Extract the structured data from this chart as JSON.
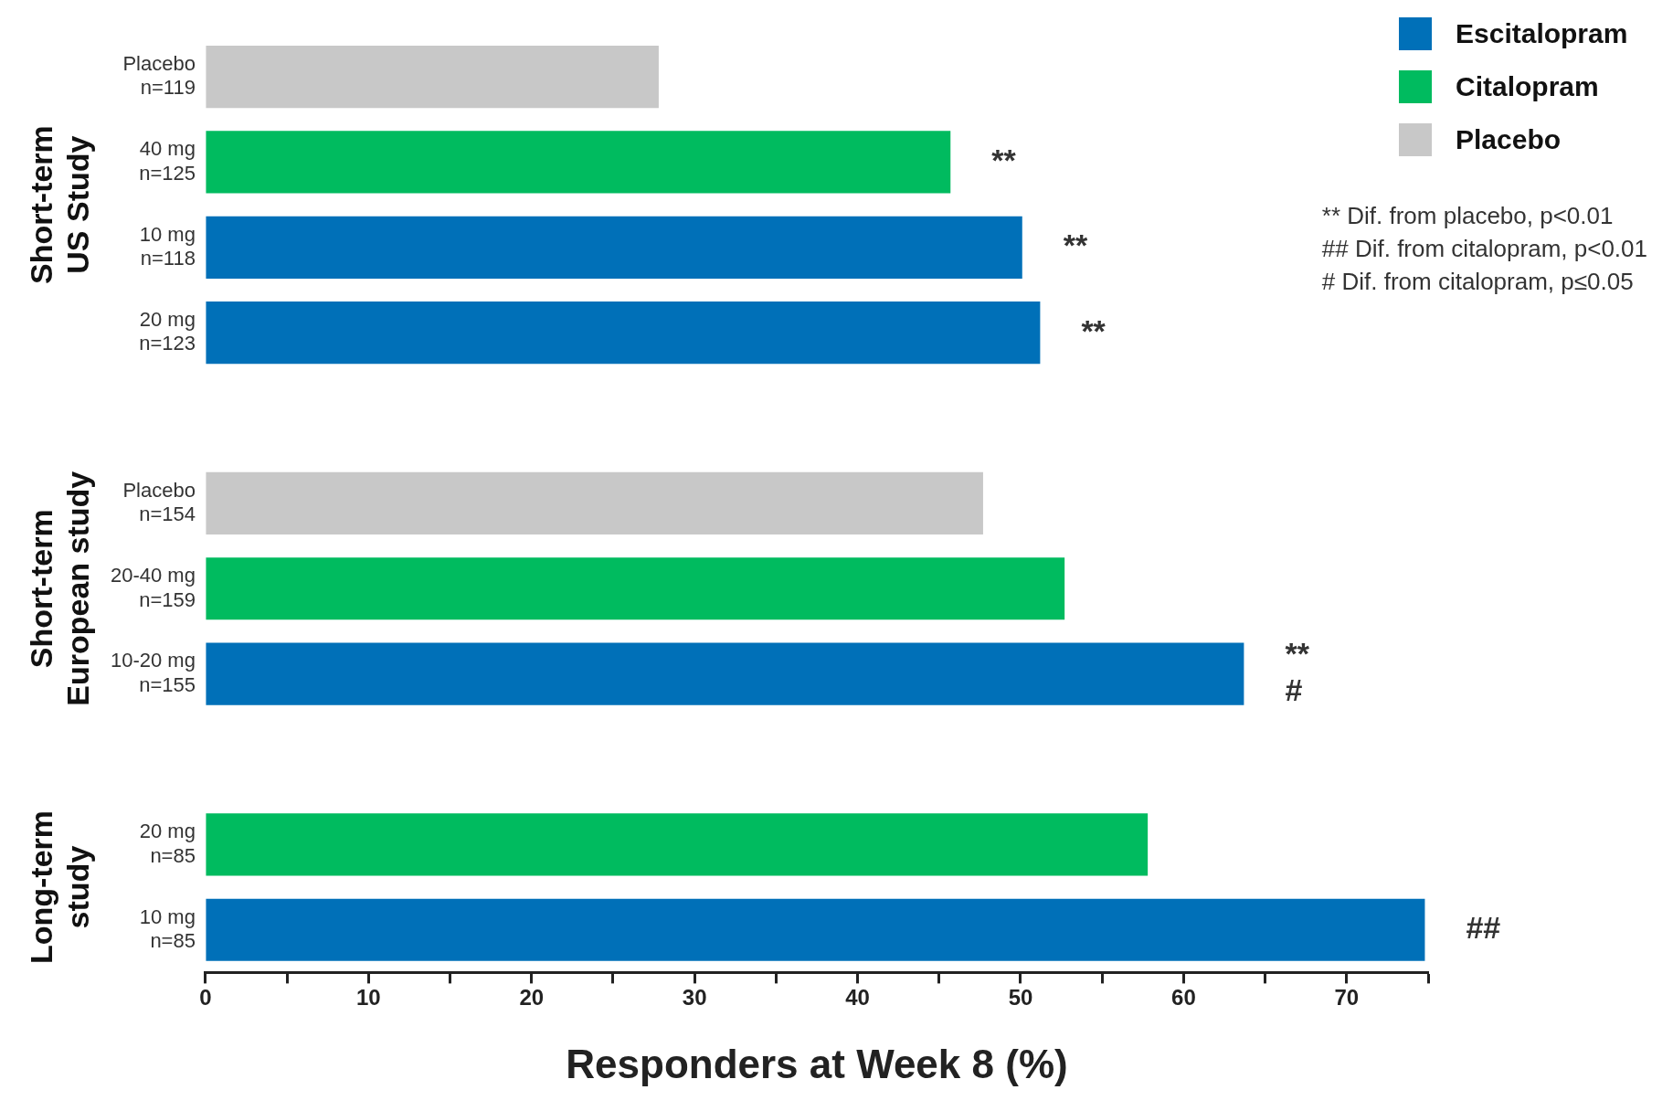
{
  "chart_data": {
    "type": "bar",
    "orientation": "horizontal",
    "xlabel": "Responders at Week 8 (%)",
    "categories": [
      "Placebo\nn=119",
      "40 mg\nn=125",
      "10 mg\nn=118",
      "20 mg\nn=123",
      null,
      "Placebo\nn=154",
      "20-40 mg\nn=159",
      "10-20 mg\nn=155",
      null,
      "20 mg\nn=85",
      "10 mg\nn=85"
    ],
    "series": [
      {
        "name": "Escitalopram",
        "color": "#0070b8",
        "values": [
          null,
          null,
          50.1,
          51.2,
          null,
          null,
          null,
          63.7,
          null,
          null,
          74.8
        ]
      },
      {
        "name": "Citalopram",
        "color": "#00bb5f",
        "values": [
          null,
          45.7,
          null,
          null,
          null,
          null,
          52.7,
          null,
          null,
          57.8,
          null
        ]
      },
      {
        "name": "Placebo",
        "color": "#c8c8c8",
        "values": [
          27.8,
          null,
          null,
          null,
          null,
          47.7,
          null,
          null,
          null,
          null,
          null
        ]
      }
    ],
    "xlim": [
      0,
      75
    ],
    "xticks": [
      0,
      {
        "value": 5,
        "label": null
      },
      10,
      {
        "value": 15,
        "label": null
      },
      20,
      {
        "value": 25,
        "label": null
      },
      30,
      {
        "value": 35,
        "label": null
      },
      40,
      {
        "value": 45,
        "label": null
      },
      50,
      {
        "value": 55,
        "label": null
      },
      60,
      {
        "value": 65,
        "label": null
      },
      70,
      {
        "value": 75,
        "label": null
      }
    ],
    "grid": false,
    "legend": "top right",
    "annotations": [
      "Short-term\nUS Study",
      "Short-term\nEuropean study",
      "Long-term\nstudy",
      "** Dif. from placebo, p<0.01",
      "## Dif. from citalopram, p<0.01",
      "# Dif. from citalopram, p≤0.05",
      {
        "text": "**",
        "x": 45.7,
        "y": "40 mg\nn=125"
      },
      {
        "text": "**",
        "x": 50.1,
        "y": "10 mg\nn=118"
      },
      {
        "text": "**",
        "x": 51.2,
        "y": "20 mg\nn=123"
      },
      {
        "text": "**\n#",
        "x": 63.7,
        "y": "10-20 mg\nn=155"
      },
      {
        "text": "##",
        "x": 74.8,
        "y": "10 mg\nn=85"
      }
    ]
  }
}
